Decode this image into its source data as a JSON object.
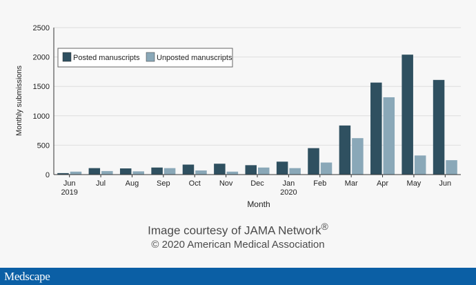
{
  "chart_data": {
    "type": "bar",
    "title": "",
    "xlabel": "Month",
    "ylabel": "Monthly submissions",
    "ylim": [
      0,
      2500
    ],
    "yticks": [
      0,
      500,
      1000,
      1500,
      2000,
      2500
    ],
    "grid": true,
    "legend_position": "top-left",
    "categories": [
      "Jun",
      "Jul",
      "Aug",
      "Sep",
      "Oct",
      "Nov",
      "Dec",
      "Jan",
      "Feb",
      "Mar",
      "Apr",
      "May",
      "Jun"
    ],
    "category_years": [
      "2019",
      "",
      "",
      "",
      "",
      "",
      "",
      "2020",
      "",
      "",
      "",
      "",
      ""
    ],
    "series": [
      {
        "name": "Posted manuscripts",
        "color": "#2f5060",
        "values": [
          25,
          110,
          105,
          120,
          170,
          185,
          160,
          220,
          450,
          835,
          1565,
          2040,
          1610
        ]
      },
      {
        "name": "Unposted manuscripts",
        "color": "#8aa8b8",
        "values": [
          50,
          60,
          55,
          110,
          70,
          50,
          120,
          110,
          205,
          620,
          1315,
          325,
          245
        ]
      }
    ]
  },
  "credit": {
    "line1": "Image courtesy of JAMA Network",
    "line1_mark": "®",
    "line2": "© 2020 American Medical Association"
  },
  "footer": {
    "logo": "Medscape"
  }
}
